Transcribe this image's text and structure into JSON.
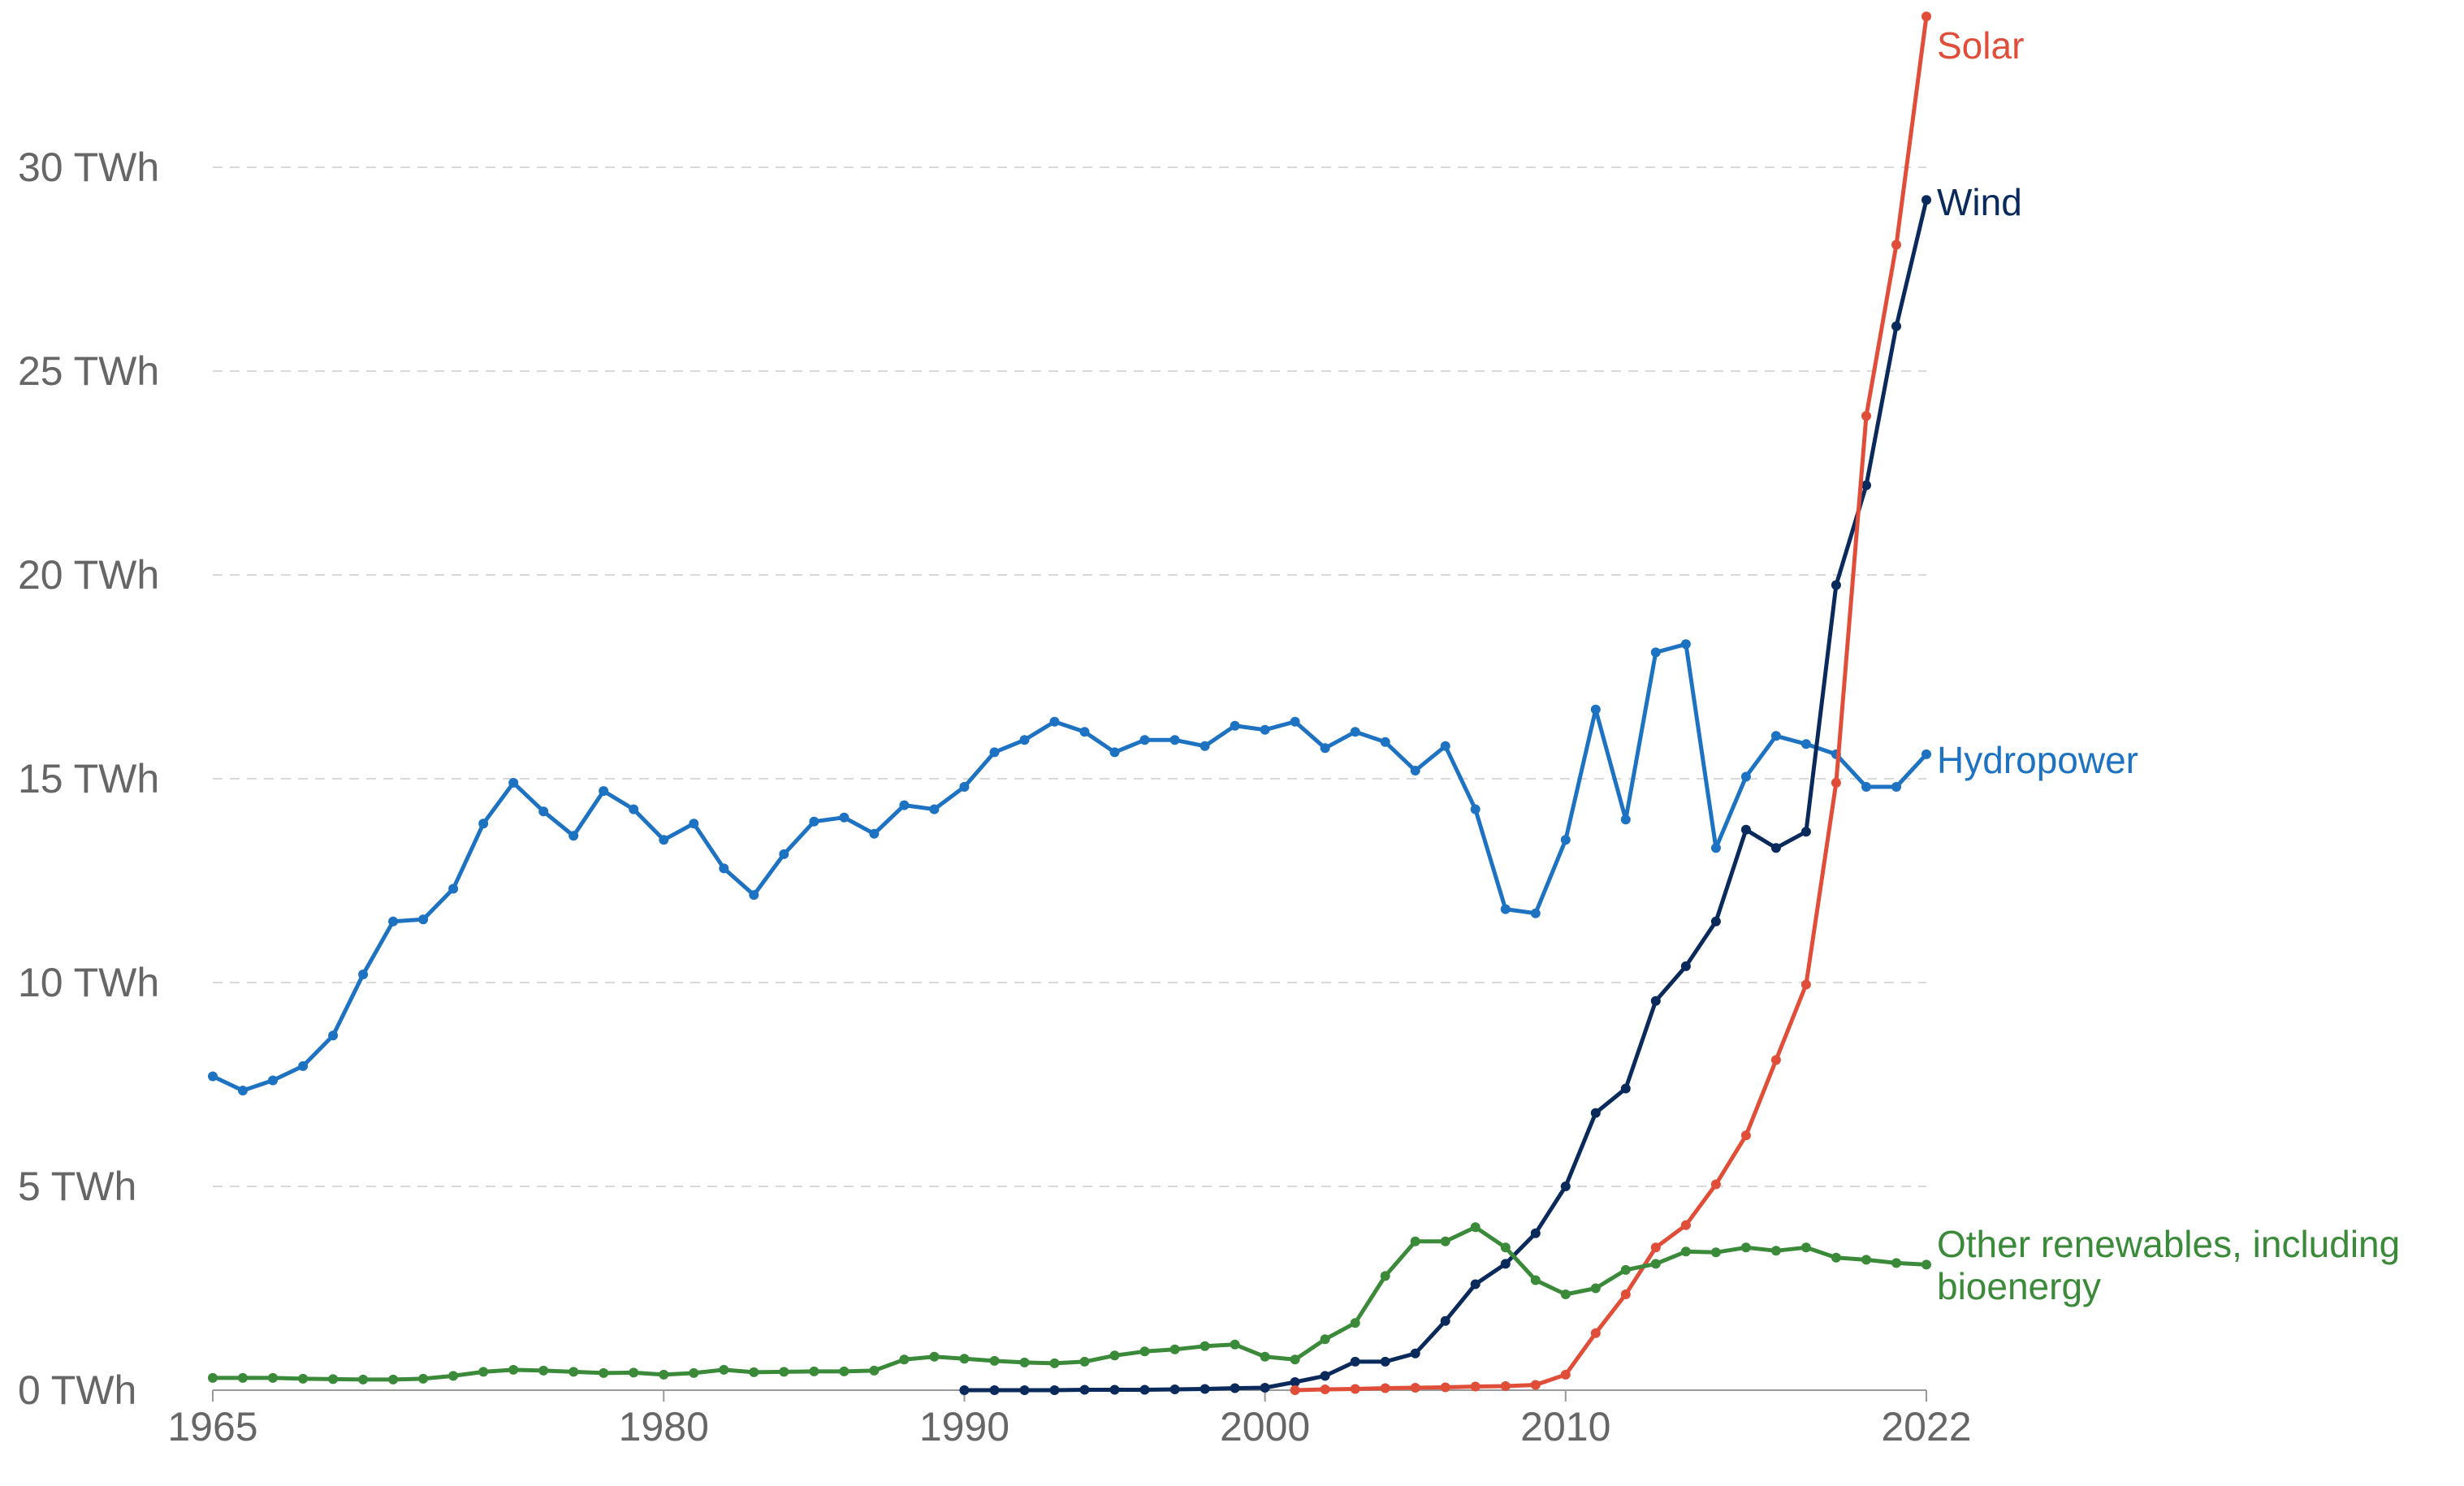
{
  "chart_data": {
    "type": "line",
    "title": "",
    "xlabel": "",
    "ylabel": "",
    "xlim": [
      1965,
      2022
    ],
    "ylim": [
      0,
      33
    ],
    "y_ticks": [
      {
        "value": 0,
        "label": "0 TWh"
      },
      {
        "value": 5,
        "label": "5 TWh"
      },
      {
        "value": 10,
        "label": "10 TWh"
      },
      {
        "value": 15,
        "label": "15 TWh"
      },
      {
        "value": 20,
        "label": "20 TWh"
      },
      {
        "value": 25,
        "label": "25 TWh"
      },
      {
        "value": 30,
        "label": "30 TWh"
      }
    ],
    "x_ticks": [
      {
        "value": 1965,
        "label": "1965"
      },
      {
        "value": 1980,
        "label": "1980"
      },
      {
        "value": 1990,
        "label": "1990"
      },
      {
        "value": 2000,
        "label": "2000"
      },
      {
        "value": 2010,
        "label": "2010"
      },
      {
        "value": 2022,
        "label": "2022"
      }
    ],
    "grid": true,
    "legend": "inline labels at line ends",
    "series": [
      {
        "name": "Hydropower",
        "color": "#1d72c2",
        "label_lines": [
          "Hydropower"
        ],
        "start_year": 1965,
        "values": [
          7.7,
          7.35,
          7.6,
          7.95,
          8.7,
          10.2,
          11.5,
          11.55,
          12.3,
          13.9,
          14.9,
          14.2,
          13.6,
          14.7,
          14.25,
          13.5,
          13.9,
          12.8,
          12.15,
          13.15,
          13.95,
          14.05,
          13.65,
          14.35,
          14.25,
          14.8,
          15.65,
          15.95,
          16.4,
          16.15,
          15.65,
          15.95,
          15.95,
          15.8,
          16.3,
          16.2,
          16.4,
          15.75,
          16.15,
          15.9,
          15.2,
          15.8,
          14.25,
          11.8,
          11.7,
          13.5,
          16.7,
          14.0,
          18.1,
          18.3,
          13.3,
          15.05,
          16.05,
          15.85,
          15.6,
          14.8,
          14.8,
          15.6
        ]
      },
      {
        "name": "Wind",
        "color": "#0b2a5c",
        "label_lines": [
          "Wind"
        ],
        "start_year": 1990,
        "values": [
          0.0,
          0.0,
          0.0,
          0.0,
          0.01,
          0.01,
          0.01,
          0.02,
          0.03,
          0.05,
          0.06,
          0.2,
          0.35,
          0.7,
          0.7,
          0.9,
          1.7,
          2.6,
          3.1,
          3.85,
          5.0,
          6.8,
          7.4,
          9.55,
          10.4,
          11.5,
          13.75,
          13.3,
          13.7,
          19.75,
          22.2,
          26.1,
          29.2
        ]
      },
      {
        "name": "Solar",
        "color": "#e04e39",
        "label_lines": [
          "Solar"
        ],
        "start_year": 2001,
        "values": [
          0.0,
          0.02,
          0.03,
          0.05,
          0.06,
          0.07,
          0.09,
          0.1,
          0.13,
          0.38,
          1.4,
          2.35,
          3.5,
          4.05,
          5.05,
          6.25,
          8.1,
          9.95,
          14.9,
          23.9,
          28.1,
          33.7
        ]
      },
      {
        "name": "Other renewables, including bioenergy",
        "color": "#3a8a3a",
        "label_lines": [
          "Other renewables, including",
          "bioenergy"
        ],
        "start_year": 1965,
        "values": [
          0.3,
          0.3,
          0.3,
          0.28,
          0.27,
          0.26,
          0.26,
          0.28,
          0.35,
          0.45,
          0.5,
          0.48,
          0.45,
          0.42,
          0.43,
          0.38,
          0.42,
          0.5,
          0.44,
          0.45,
          0.46,
          0.46,
          0.48,
          0.75,
          0.82,
          0.77,
          0.72,
          0.68,
          0.66,
          0.7,
          0.85,
          0.95,
          1.0,
          1.08,
          1.12,
          0.82,
          0.75,
          1.25,
          1.65,
          2.8,
          3.65,
          3.65,
          4.0,
          3.5,
          2.7,
          2.35,
          2.5,
          2.95,
          3.1,
          3.4,
          3.38,
          3.5,
          3.42,
          3.5,
          3.25,
          3.2,
          3.12,
          3.08
        ]
      }
    ]
  }
}
